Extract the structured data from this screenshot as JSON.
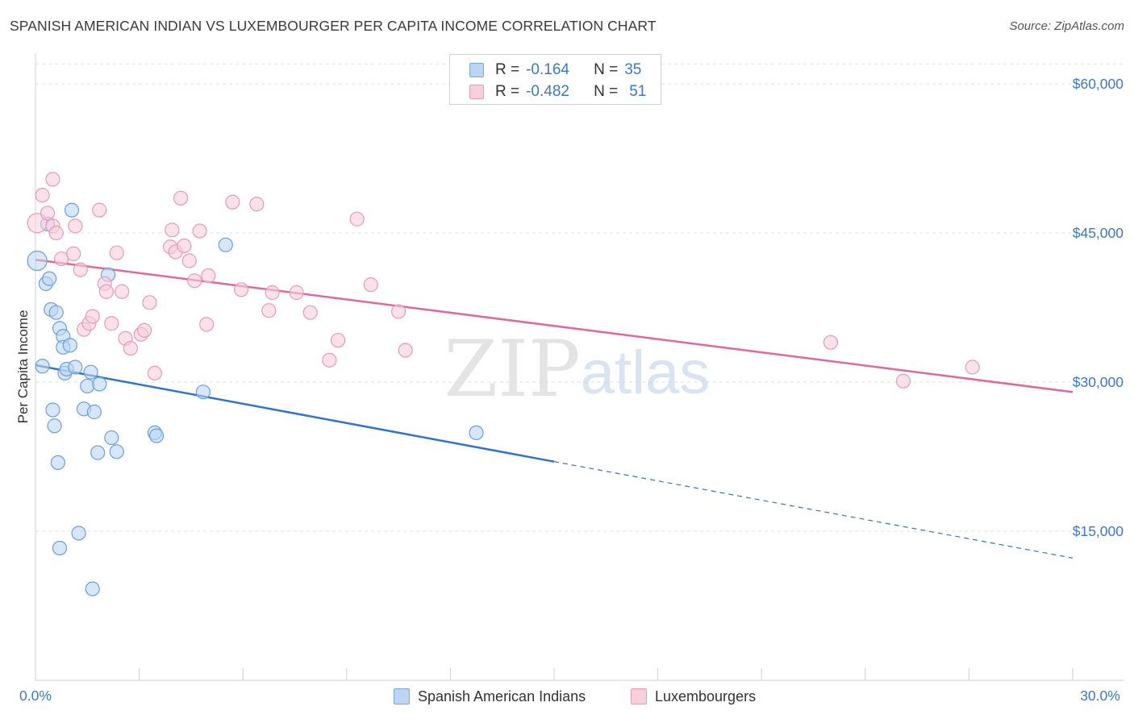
{
  "title": "SPANISH AMERICAN INDIAN VS LUXEMBOURGER PER CAPITA INCOME CORRELATION CHART",
  "source": "Source: ZipAtlas.com",
  "watermark": {
    "zip": "ZIP",
    "atlas": "atlas"
  },
  "legend": {
    "rows": [
      {
        "r_label": "R =",
        "r_value": "-0.164",
        "n_label": "N =",
        "n_value": "35",
        "color": "#a9c8f0",
        "border": "#7aa7e0"
      },
      {
        "r_label": "R =",
        "r_value": "-0.482",
        "n_label": "N =",
        "n_value": "51",
        "color": "#f7c3d2",
        "border": "#e99ab2"
      }
    ]
  },
  "bottom_legend": [
    {
      "label": "Spanish American Indians",
      "color": "#bcd5f3",
      "border": "#7aa7e0"
    },
    {
      "label": "Luxembourgers",
      "color": "#f9cfdc",
      "border": "#e99ab2"
    }
  ],
  "chart_data": {
    "type": "scatter",
    "title": "SPANISH AMERICAN INDIAN VS LUXEMBOURGER PER CAPITA INCOME CORRELATION CHART",
    "xlabel": "",
    "ylabel": "Per Capita Income",
    "xlim": [
      0,
      30
    ],
    "ylim": [
      0,
      63000
    ],
    "x_tick_labels": [
      "0.0%",
      "30.0%"
    ],
    "y_ticks": [
      15000,
      30000,
      45000,
      60000
    ],
    "y_tick_labels": [
      "$15,000",
      "$30,000",
      "$45,000",
      "$60,000"
    ],
    "grid": true,
    "series": [
      {
        "name": "Spanish American Indians",
        "color": "#6a9fe0",
        "fill": "#bcd5f3",
        "line_color": "#2f74d0",
        "trend": {
          "x0": 0,
          "y0": 31700,
          "x1": 15,
          "y1": 22000,
          "dashed_to_x": 30,
          "dashed_to_y": 12300
        },
        "points": [
          [
            0.05,
            42200
          ],
          [
            0.2,
            31600
          ],
          [
            0.3,
            39900
          ],
          [
            0.35,
            45900
          ],
          [
            0.4,
            40400
          ],
          [
            0.45,
            37300
          ],
          [
            0.5,
            27200
          ],
          [
            0.55,
            25600
          ],
          [
            0.6,
            37000
          ],
          [
            0.65,
            21900
          ],
          [
            0.7,
            13300
          ],
          [
            0.7,
            35400
          ],
          [
            0.8,
            34600
          ],
          [
            0.8,
            33500
          ],
          [
            0.85,
            30900
          ],
          [
            0.9,
            31300
          ],
          [
            1.0,
            33700
          ],
          [
            1.05,
            47300
          ],
          [
            1.15,
            31500
          ],
          [
            1.25,
            14800
          ],
          [
            1.4,
            27300
          ],
          [
            1.5,
            29600
          ],
          [
            1.6,
            31000
          ],
          [
            1.65,
            9200
          ],
          [
            1.7,
            27000
          ],
          [
            1.8,
            22900
          ],
          [
            1.85,
            29800
          ],
          [
            2.1,
            40800
          ],
          [
            2.2,
            24400
          ],
          [
            2.35,
            23000
          ],
          [
            3.45,
            24900
          ],
          [
            3.5,
            24600
          ],
          [
            4.85,
            29000
          ],
          [
            5.5,
            43800
          ],
          [
            12.75,
            24900
          ]
        ]
      },
      {
        "name": "Luxembourgers",
        "color": "#e99ab2",
        "fill": "#f9cfdc",
        "line_color": "#e0689a",
        "trend": {
          "x0": 0,
          "y0": 42300,
          "x1": 30,
          "y1": 29000
        },
        "points": [
          [
            0.05,
            46000
          ],
          [
            0.2,
            48800
          ],
          [
            0.35,
            47000
          ],
          [
            0.5,
            45700
          ],
          [
            0.5,
            50400
          ],
          [
            0.6,
            45000
          ],
          [
            0.75,
            42400
          ],
          [
            1.1,
            42900
          ],
          [
            1.15,
            45700
          ],
          [
            1.3,
            41300
          ],
          [
            1.4,
            35300
          ],
          [
            1.55,
            35900
          ],
          [
            1.65,
            36600
          ],
          [
            1.85,
            47300
          ],
          [
            2.0,
            39900
          ],
          [
            2.05,
            39100
          ],
          [
            2.2,
            35900
          ],
          [
            2.35,
            43000
          ],
          [
            2.5,
            39100
          ],
          [
            2.6,
            34400
          ],
          [
            2.75,
            33400
          ],
          [
            3.05,
            34800
          ],
          [
            3.15,
            35200
          ],
          [
            3.3,
            38000
          ],
          [
            3.45,
            30900
          ],
          [
            3.9,
            43600
          ],
          [
            3.95,
            45300
          ],
          [
            4.05,
            43100
          ],
          [
            4.2,
            48500
          ],
          [
            4.3,
            43700
          ],
          [
            4.45,
            42200
          ],
          [
            4.6,
            40200
          ],
          [
            4.75,
            45200
          ],
          [
            4.95,
            35800
          ],
          [
            5.0,
            40700
          ],
          [
            5.7,
            48100
          ],
          [
            5.95,
            39300
          ],
          [
            6.4,
            47900
          ],
          [
            6.75,
            37200
          ],
          [
            6.85,
            39000
          ],
          [
            7.55,
            39000
          ],
          [
            7.95,
            37000
          ],
          [
            8.5,
            32200
          ],
          [
            8.75,
            34200
          ],
          [
            9.3,
            46400
          ],
          [
            9.7,
            39800
          ],
          [
            10.5,
            37100
          ],
          [
            10.7,
            33200
          ],
          [
            23.0,
            34000
          ],
          [
            25.1,
            30100
          ],
          [
            27.1,
            31500
          ]
        ]
      }
    ]
  }
}
